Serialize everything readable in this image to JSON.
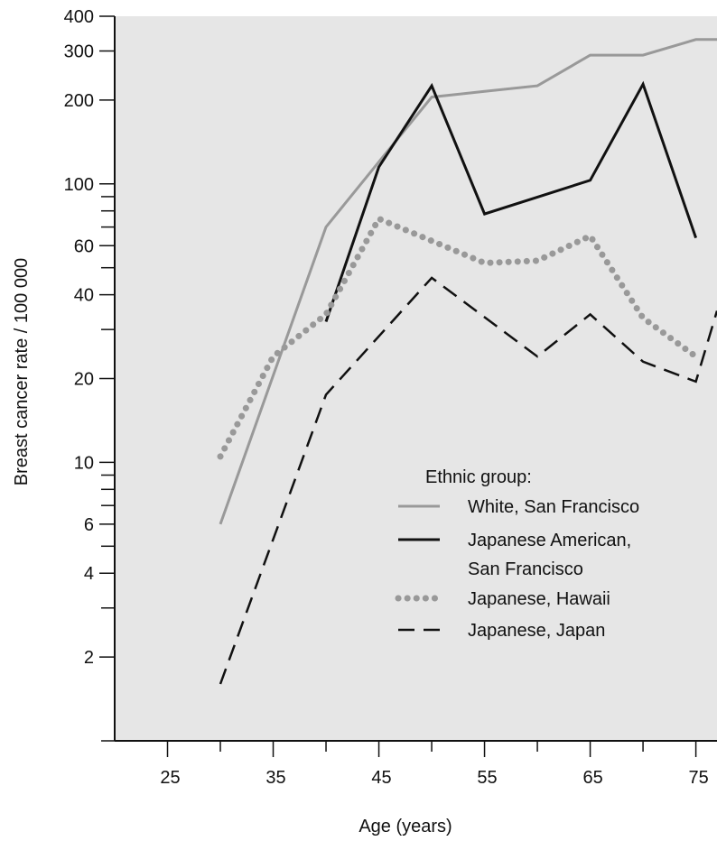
{
  "chart_data": {
    "type": "line",
    "title": "",
    "xlabel": "Age (years)",
    "ylabel": "Breast cancer rate / 100 000",
    "y_scale": "log",
    "xlim": [
      20,
      77
    ],
    "ylim": [
      1,
      400
    ],
    "x_ticks": [
      25,
      35,
      45,
      55,
      65,
      75
    ],
    "x_tick_labels": [
      "25",
      "35",
      "45",
      "55",
      "65",
      "75"
    ],
    "y_ticks": [
      2,
      4,
      6,
      10,
      20,
      40,
      60,
      100,
      200,
      300,
      400
    ],
    "y_tick_labels": [
      "2",
      "4",
      "6",
      "10",
      "20",
      "40",
      "60",
      "100",
      "200",
      "300",
      "400"
    ],
    "background_color": "#e6e6e6",
    "legend": {
      "title": "Ethnic group:",
      "placement": "lower-right inside plot"
    },
    "series": [
      {
        "name": "White, San Francisco",
        "style": "solid",
        "color": "#999999",
        "x": [
          30,
          40,
          45,
          50,
          55,
          60,
          65,
          70,
          75,
          77
        ],
        "y": [
          6,
          70,
          120,
          205,
          215,
          225,
          290,
          290,
          330,
          330
        ]
      },
      {
        "name": "Japanese American, San Francisco",
        "legend_lines": [
          "Japanese American,",
          "San Francisco"
        ],
        "style": "solid",
        "color": "#111111",
        "x": [
          40,
          45,
          50,
          55,
          65,
          70,
          75
        ],
        "y": [
          32,
          115,
          225,
          78,
          103,
          228,
          64
        ]
      },
      {
        "name": "Japanese, Hawaii",
        "style": "dotted",
        "color": "#999999",
        "x": [
          30,
          35,
          40,
          45,
          55,
          60,
          65,
          70,
          75
        ],
        "y": [
          10.5,
          24,
          34,
          75,
          52,
          53,
          65,
          33,
          24
        ]
      },
      {
        "name": "Japanese, Japan",
        "style": "dashed",
        "color": "#111111",
        "x": [
          30,
          40,
          50,
          60,
          65,
          70,
          75,
          77
        ],
        "y": [
          1.6,
          17.5,
          46,
          24,
          34,
          23,
          19.5,
          35
        ]
      }
    ]
  }
}
